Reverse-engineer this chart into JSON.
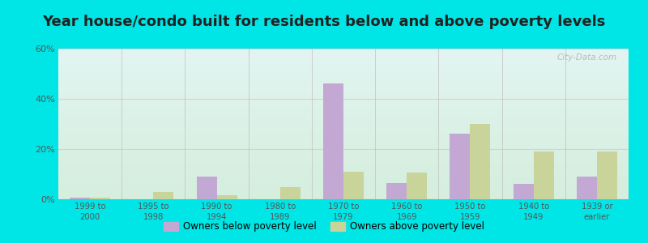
{
  "title": "Year house/condo built for residents below and above poverty levels",
  "categories": [
    "1999 to\n2000",
    "1995 to\n1998",
    "1990 to\n1994",
    "1980 to\n1989",
    "1970 to\n1979",
    "1960 to\n1969",
    "1950 to\n1959",
    "1940 to\n1949",
    "1939 or\nearlier"
  ],
  "below_poverty": [
    0.5,
    0.0,
    9.0,
    0.0,
    46.0,
    6.5,
    26.0,
    6.0,
    9.0
  ],
  "above_poverty": [
    0.5,
    3.0,
    1.5,
    5.0,
    11.0,
    10.5,
    30.0,
    19.0,
    19.0
  ],
  "below_color": "#c4a8d4",
  "above_color": "#c8d49a",
  "ylim": [
    0,
    60
  ],
  "yticks": [
    0,
    20,
    40,
    60
  ],
  "ytick_labels": [
    "0%",
    "20%",
    "40%",
    "60%"
  ],
  "bg_top_color": "#e2f5f2",
  "bg_bottom_color": "#d5eedd",
  "title_fontsize": 13,
  "outer_background": "#00e5e5",
  "legend_below_label": "Owners below poverty level",
  "legend_above_label": "Owners above poverty level",
  "watermark": "City-Data.com",
  "bar_width": 0.32,
  "grid_color": "#e8c8cc",
  "separator_color": "#c0c0c0"
}
